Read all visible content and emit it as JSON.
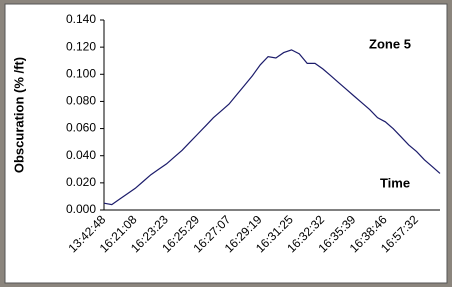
{
  "chart_data": {
    "type": "line",
    "y_label": "Obscuration (% /ft)",
    "annotations": [
      "Zone 5",
      "Time"
    ],
    "categories": [
      "13:42:48",
      null,
      null,
      null,
      "16:21:08",
      null,
      null,
      null,
      "16:23:23",
      null,
      null,
      null,
      "16:25:29",
      null,
      null,
      null,
      "16:27:07",
      null,
      null,
      null,
      "16:29:19",
      null,
      null,
      null,
      "16:31:25",
      null,
      null,
      null,
      "16:32:32",
      null,
      null,
      null,
      "16:35:39",
      null,
      null,
      null,
      "16:38:46",
      null,
      null,
      null,
      "16:57:32",
      null,
      null,
      null
    ],
    "values": [
      0.005,
      0.004,
      0.008,
      0.012,
      0.016,
      0.021,
      0.026,
      0.03,
      0.034,
      0.039,
      0.044,
      0.05,
      0.056,
      0.062,
      0.068,
      0.073,
      0.078,
      0.085,
      0.092,
      0.099,
      0.107,
      0.113,
      0.112,
      0.116,
      0.118,
      0.115,
      0.108,
      0.108,
      0.104,
      0.099,
      0.094,
      0.089,
      0.084,
      0.079,
      0.074,
      0.068,
      0.065,
      0.06,
      0.054,
      0.048,
      0.043,
      0.037,
      0.032,
      0.027
    ],
    "color": "#1c1c6b",
    "ylim": [
      0,
      0.14
    ],
    "yticks": [
      {
        "value": 0,
        "label": "0.000"
      },
      {
        "value": 0.02,
        "label": "0.020"
      },
      {
        "value": 0.04,
        "label": "0.040"
      },
      {
        "value": 0.06,
        "label": "0.060"
      },
      {
        "value": 0.08,
        "label": "0.080"
      },
      {
        "value": 0.1,
        "label": "0.100"
      },
      {
        "value": 0.12,
        "label": "0.120"
      },
      {
        "value": 0.14,
        "label": "0.140"
      }
    ],
    "grid": false
  }
}
